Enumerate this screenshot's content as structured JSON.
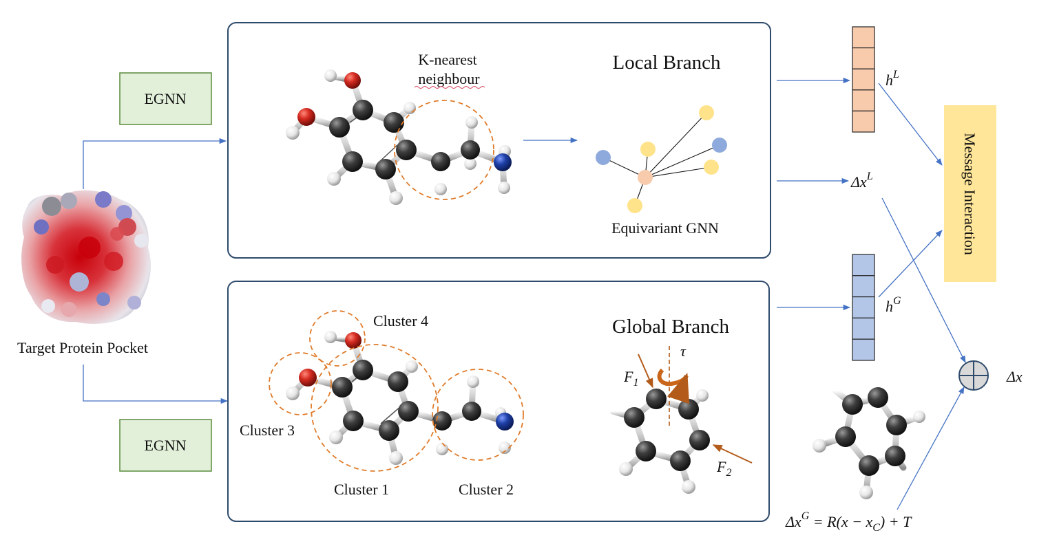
{
  "labels": {
    "target_protein": "Target Protein Pocket",
    "egnn_top": "EGNN",
    "egnn_bottom": "EGNN",
    "local_title": "Local Branch",
    "global_title": "Global Branch",
    "knn_line1": "K-nearest",
    "knn_line2": "neighbour",
    "equivariant_gnn": "Equivariant GNN",
    "cluster1": "Cluster 1",
    "cluster2": "Cluster 2",
    "cluster3": "Cluster 3",
    "cluster4": "Cluster 4",
    "message_interaction": "Message  Interaction",
    "hL_base": "h",
    "hL_sup": "L",
    "hG_base": "h",
    "hG_sup": "G",
    "dxL_base": "Δx",
    "dxL_sup": "L",
    "dx": "Δx",
    "dxG_base": "Δx",
    "dxG_sup": "G",
    "dxG_rhs": " = R(x − x",
    "dxG_sub": "C",
    "dxG_end": ") + T",
    "F1_base": "F",
    "F1_sub": "1",
    "F2_base": "F",
    "F2_sub": "2",
    "tau": "τ"
  },
  "colors": {
    "box_border": "#2e4a6b",
    "egnn_fill": "#e2efd9",
    "egnn_border": "#5b8a3c",
    "hL_fill": "#f8cbad",
    "hG_fill": "#b4c6e7",
    "message_fill": "#ffe699",
    "arrow": "#4472c4",
    "cluster_dash": "#e07b2a",
    "carbon": "#3a3a3a",
    "oxygen": "#d42a20",
    "nitrogen": "#1e40a8",
    "hydrogen": "#f0f0f0",
    "force_arrow": "#b35b1a",
    "node_yellow": "#ffe38a",
    "node_blue": "#8ea9db",
    "node_peach": "#f8cbad"
  }
}
